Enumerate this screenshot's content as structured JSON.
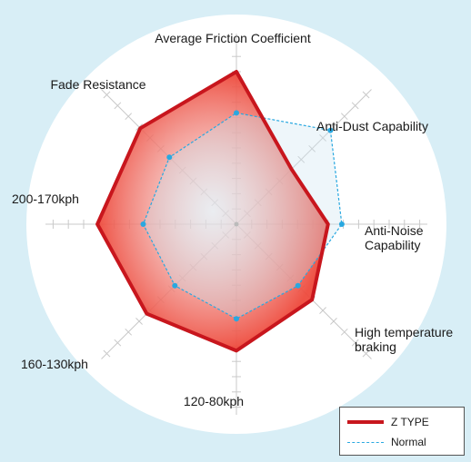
{
  "chart_data": {
    "type": "radar",
    "title": "",
    "axes": [
      "Average Friction Coefficient",
      "Anti-Dust Capability",
      "Anti-Noise Capability",
      "High temperature braking",
      "120-80kph",
      "160-130kph",
      "200-170kph",
      "Fade Resistance"
    ],
    "axis_label_lines": [
      [
        "Average Friction Coefficient"
      ],
      [
        "Anti-Dust Capability"
      ],
      [
        "Anti-Noise",
        "Capability"
      ],
      [
        "High temperature",
        "braking"
      ],
      [
        "120-80kph"
      ],
      [
        "160-130kph"
      ],
      [
        "200-170kph"
      ],
      [
        "Fade Resistance"
      ]
    ],
    "scale_max": 10,
    "series": [
      {
        "name": "Z TYPE",
        "values": [
          10,
          5.1,
          6.0,
          7.0,
          8.3,
          8.3,
          9.1,
          8.9
        ]
      },
      {
        "name": "Normal",
        "values": [
          7.3,
          8.7,
          6.9,
          5.7,
          6.2,
          5.7,
          6.1,
          6.2
        ]
      }
    ],
    "legend_position": "bottom-right",
    "grid": true
  },
  "colors": {
    "background": "#d8eef6",
    "disc": "#ffffff",
    "z_type_line": "#c8161d",
    "z_type_fill": "#ee4a3c",
    "normal_line": "#29a8e0",
    "grid": "#c9c9c9"
  }
}
